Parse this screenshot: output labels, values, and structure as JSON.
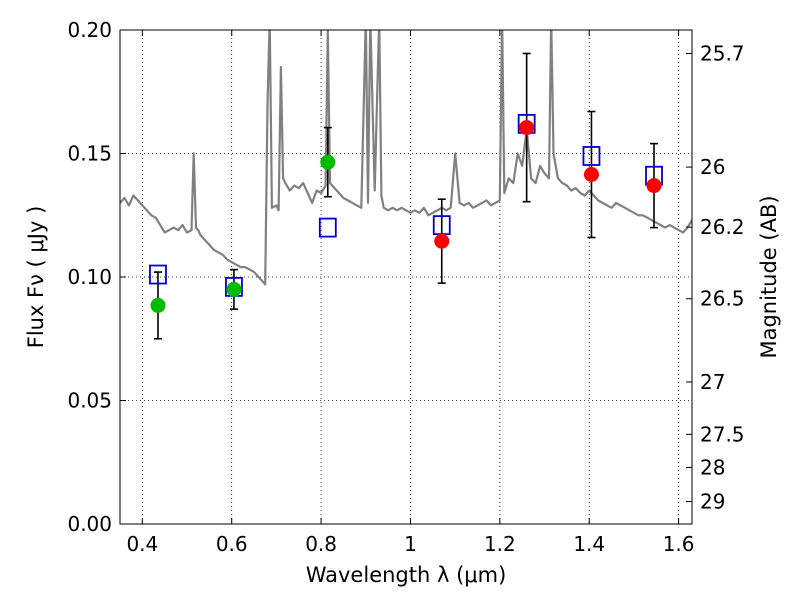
{
  "chart_data": {
    "type": "scatter",
    "title": "",
    "xlabel": "Wavelength  λ (μm)",
    "ylabel": "Flux  Fν  ( μJy )",
    "ylabel_right": "Magnitude (AB)",
    "xlim": [
      0.35,
      1.63
    ],
    "ylim": [
      0.0,
      0.2
    ],
    "grid": true,
    "x_ticks": [
      0.4,
      0.6,
      0.8,
      1.0,
      1.2,
      1.4,
      1.6
    ],
    "x_tick_labels": [
      "0.4",
      "0.6",
      "0.8",
      "1",
      "1.2",
      "1.4",
      "1.6"
    ],
    "y_ticks": [
      0.0,
      0.05,
      0.1,
      0.15,
      0.2
    ],
    "y_tick_labels": [
      "0.00",
      "0.05",
      "0.10",
      "0.15",
      "0.20"
    ],
    "right_ticks": [
      {
        "label": "25.7",
        "flux": 0.1905
      },
      {
        "label": "26",
        "flux": 0.1445
      },
      {
        "label": "26.2",
        "flux": 0.1202
      },
      {
        "label": "26.5",
        "flux": 0.0912
      },
      {
        "label": "27",
        "flux": 0.0575
      },
      {
        "label": "27.5",
        "flux": 0.0363
      },
      {
        "label": "28",
        "flux": 0.0229
      },
      {
        "label": "29",
        "flux": 0.0091
      }
    ],
    "colors": {
      "spectrum": "#808080",
      "model": "#0000cc",
      "green": "#00bb00",
      "red": "#ff0000",
      "errorbar": "#000000"
    },
    "series": [
      {
        "name": "",
        "kind": "spectrum",
        "x": [
          0.35,
          0.36,
          0.37,
          0.38,
          0.39,
          0.4,
          0.41,
          0.42,
          0.43,
          0.44,
          0.45,
          0.46,
          0.47,
          0.48,
          0.49,
          0.5,
          0.51,
          0.515,
          0.52,
          0.525,
          0.53,
          0.54,
          0.55,
          0.56,
          0.57,
          0.58,
          0.59,
          0.6,
          0.61,
          0.62,
          0.63,
          0.64,
          0.65,
          0.66,
          0.67,
          0.675,
          0.68,
          0.685,
          0.69,
          0.7,
          0.705,
          0.71,
          0.715,
          0.72,
          0.73,
          0.74,
          0.75,
          0.76,
          0.77,
          0.78,
          0.79,
          0.8,
          0.81,
          0.815,
          0.82,
          0.83,
          0.84,
          0.85,
          0.86,
          0.87,
          0.88,
          0.89,
          0.9,
          0.905,
          0.91,
          0.92,
          0.93,
          0.935,
          0.94,
          0.95,
          0.96,
          0.97,
          0.98,
          0.99,
          1.0,
          1.01,
          1.02,
          1.03,
          1.04,
          1.05,
          1.06,
          1.07,
          1.08,
          1.09,
          1.1,
          1.11,
          1.12,
          1.13,
          1.14,
          1.15,
          1.16,
          1.17,
          1.18,
          1.19,
          1.2,
          1.205,
          1.21,
          1.22,
          1.23,
          1.24,
          1.25,
          1.26,
          1.27,
          1.28,
          1.29,
          1.3,
          1.31,
          1.315,
          1.32,
          1.33,
          1.34,
          1.35,
          1.36,
          1.37,
          1.38,
          1.39,
          1.4,
          1.41,
          1.42,
          1.43,
          1.44,
          1.45,
          1.46,
          1.47,
          1.48,
          1.49,
          1.5,
          1.51,
          1.52,
          1.53,
          1.54,
          1.55,
          1.56,
          1.57,
          1.58,
          1.59,
          1.6,
          1.61,
          1.62,
          1.63
        ],
        "y": [
          0.13,
          0.132,
          0.129,
          0.133,
          0.131,
          0.129,
          0.127,
          0.125,
          0.124,
          0.121,
          0.118,
          0.119,
          0.12,
          0.119,
          0.121,
          0.118,
          0.119,
          0.15,
          0.12,
          0.119,
          0.117,
          0.115,
          0.113,
          0.111,
          0.11,
          0.109,
          0.107,
          0.106,
          0.105,
          0.104,
          0.104,
          0.103,
          0.102,
          0.1,
          0.098,
          0.097,
          0.17,
          0.205,
          0.128,
          0.129,
          0.127,
          0.185,
          0.14,
          0.138,
          0.135,
          0.137,
          0.136,
          0.138,
          0.134,
          0.13,
          0.135,
          0.134,
          0.137,
          0.2,
          0.138,
          0.136,
          0.134,
          0.132,
          0.131,
          0.13,
          0.129,
          0.128,
          0.205,
          0.13,
          0.205,
          0.135,
          0.205,
          0.133,
          0.128,
          0.127,
          0.128,
          0.127,
          0.128,
          0.127,
          0.126,
          0.127,
          0.126,
          0.128,
          0.125,
          0.126,
          0.127,
          0.128,
          0.127,
          0.128,
          0.15,
          0.13,
          0.129,
          0.13,
          0.128,
          0.129,
          0.13,
          0.131,
          0.129,
          0.13,
          0.131,
          0.205,
          0.134,
          0.14,
          0.138,
          0.15,
          0.145,
          0.16,
          0.14,
          0.138,
          0.145,
          0.142,
          0.14,
          0.205,
          0.15,
          0.14,
          0.138,
          0.137,
          0.135,
          0.136,
          0.134,
          0.133,
          0.135,
          0.133,
          0.131,
          0.13,
          0.129,
          0.128,
          0.13,
          0.129,
          0.128,
          0.127,
          0.126,
          0.125,
          0.125,
          0.124,
          0.123,
          0.122,
          0.121,
          0.12,
          0.121,
          0.12,
          0.119,
          0.118,
          0.12,
          0.123
        ]
      },
      {
        "name": "",
        "kind": "model",
        "x": [
          0.435,
          0.605,
          0.815,
          1.07,
          1.26,
          1.405,
          1.545
        ],
        "y": [
          0.101,
          0.096,
          0.12,
          0.121,
          0.162,
          0.149,
          0.141
        ]
      },
      {
        "name": "",
        "kind": "observed",
        "x": [
          0.435,
          0.605,
          0.815,
          1.07,
          1.26,
          1.405,
          1.545
        ],
        "y": [
          0.0885,
          0.095,
          0.1465,
          0.1145,
          0.1605,
          0.1415,
          0.137
        ],
        "yerr": [
          0.0135,
          0.008,
          0.014,
          0.017,
          0.03,
          0.0255,
          0.017
        ],
        "color": [
          "green",
          "green",
          "green",
          "red",
          "red",
          "red",
          "red"
        ]
      }
    ]
  }
}
